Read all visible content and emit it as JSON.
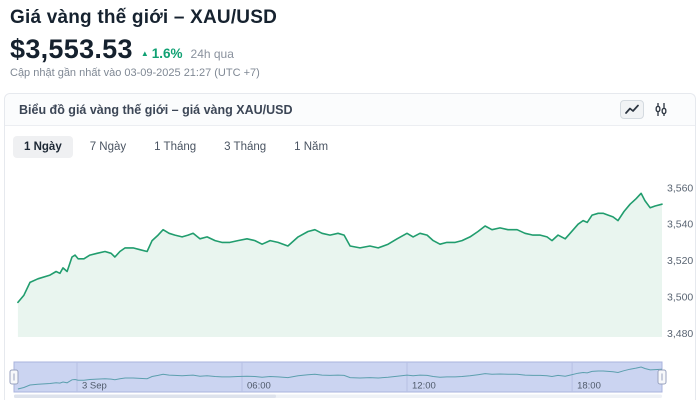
{
  "header": {
    "title": "Giá vàng thế giới – XAU/USD",
    "price": "$3,553.53",
    "change": {
      "arrow": "▲",
      "value": "1.6%",
      "color": "#10a173"
    },
    "change_period": "24h qua",
    "updated": "Cập nhật gần nhất vào 03-09-2025 21:27 (UTC +7)"
  },
  "chart_panel": {
    "title": "Biểu đồ giá vàng thế giới – giá vàng XAU/USD",
    "toolbar": [
      {
        "name": "line-chart-toggle",
        "icon": "line-chart-icon",
        "active": true
      },
      {
        "name": "candlestick-toggle",
        "icon": "candlestick-icon",
        "active": false
      }
    ],
    "range_tabs": [
      {
        "label": "1 Ngày",
        "active": true
      },
      {
        "label": "7 Ngày",
        "active": false
      },
      {
        "label": "1 Tháng",
        "active": false
      },
      {
        "label": "3 Tháng",
        "active": false
      },
      {
        "label": "1 Năm",
        "active": false
      }
    ]
  },
  "chart_data": {
    "type": "area",
    "title": "XAU/USD intraday price",
    "x_unit": "hours relative to 3 Sep 00:00 (UTC+7)",
    "x_range": [
      -2.29,
      21.27
    ],
    "x_ticks": [
      {
        "pos": 0,
        "label": "3 Sep"
      },
      {
        "pos": 6,
        "label": "06:00"
      },
      {
        "pos": 12,
        "label": "12:00"
      },
      {
        "pos": 18,
        "label": "18:00"
      }
    ],
    "y_ticks": [
      3480,
      3500,
      3520,
      3540,
      3560
    ],
    "y_tick_labels": [
      "3,480",
      "3,500",
      "3,520",
      "3,540",
      "3,560"
    ],
    "ylim": [
      3478,
      3572
    ],
    "grid": false,
    "colors": {
      "line": "#219d6e",
      "fill": "#e9f5ef",
      "axis_label": "#5a6573",
      "navigator_bg": "#cbd4f1",
      "navigator_border": "#a9b3dd",
      "navigator_grid": "#b7c0e4",
      "navigator_line": "#5c9fae",
      "navigator_label": "#4f5a6a",
      "handle_fill": "#f7f8fa",
      "handle_stroke": "#98a2bf",
      "scrollbar_track": "#eef1f6",
      "scrollbar_thumb": "#dde2ec"
    },
    "series": [
      {
        "name": "XAU/USD",
        "points": [
          [
            -2.15,
            3497
          ],
          [
            -1.93,
            3501
          ],
          [
            -1.71,
            3508
          ],
          [
            -1.42,
            3510
          ],
          [
            -0.98,
            3512
          ],
          [
            -0.76,
            3514
          ],
          [
            -0.62,
            3513
          ],
          [
            -0.51,
            3516
          ],
          [
            -0.36,
            3514
          ],
          [
            -0.18,
            3522
          ],
          [
            -0.07,
            3523
          ],
          [
            0.04,
            3521
          ],
          [
            0.25,
            3521
          ],
          [
            0.47,
            3523
          ],
          [
            0.73,
            3524
          ],
          [
            1.02,
            3525
          ],
          [
            1.24,
            3524
          ],
          [
            1.38,
            3522
          ],
          [
            1.56,
            3525
          ],
          [
            1.75,
            3527
          ],
          [
            2.04,
            3527
          ],
          [
            2.29,
            3526
          ],
          [
            2.55,
            3525
          ],
          [
            2.73,
            3531
          ],
          [
            2.95,
            3534
          ],
          [
            3.13,
            3537
          ],
          [
            3.35,
            3535
          ],
          [
            3.56,
            3534
          ],
          [
            3.82,
            3533
          ],
          [
            4.04,
            3534
          ],
          [
            4.22,
            3535
          ],
          [
            4.47,
            3532
          ],
          [
            4.73,
            3533
          ],
          [
            5.02,
            3531
          ],
          [
            5.27,
            3530
          ],
          [
            5.56,
            3530
          ],
          [
            5.85,
            3531
          ],
          [
            6.18,
            3532
          ],
          [
            6.47,
            3531
          ],
          [
            6.73,
            3529
          ],
          [
            7.02,
            3531
          ],
          [
            7.31,
            3530
          ],
          [
            7.67,
            3528
          ],
          [
            8.04,
            3533
          ],
          [
            8.4,
            3536
          ],
          [
            8.65,
            3537
          ],
          [
            8.91,
            3535
          ],
          [
            9.2,
            3534
          ],
          [
            9.49,
            3535
          ],
          [
            9.71,
            3534
          ],
          [
            9.93,
            3528
          ],
          [
            10.29,
            3527
          ],
          [
            10.65,
            3528
          ],
          [
            10.95,
            3527
          ],
          [
            11.31,
            3529
          ],
          [
            11.64,
            3532
          ],
          [
            12.0,
            3535
          ],
          [
            12.22,
            3533
          ],
          [
            12.47,
            3535
          ],
          [
            12.73,
            3534
          ],
          [
            12.95,
            3531
          ],
          [
            13.2,
            3529
          ],
          [
            13.45,
            3530
          ],
          [
            13.75,
            3530
          ],
          [
            14.0,
            3531
          ],
          [
            14.29,
            3533
          ],
          [
            14.58,
            3536
          ],
          [
            14.84,
            3539
          ],
          [
            15.09,
            3537
          ],
          [
            15.38,
            3538
          ],
          [
            15.67,
            3537
          ],
          [
            16.0,
            3537
          ],
          [
            16.29,
            3535
          ],
          [
            16.58,
            3534
          ],
          [
            16.84,
            3534
          ],
          [
            17.09,
            3533
          ],
          [
            17.27,
            3531
          ],
          [
            17.49,
            3534
          ],
          [
            17.75,
            3532
          ],
          [
            17.93,
            3535
          ],
          [
            18.22,
            3540
          ],
          [
            18.4,
            3542
          ],
          [
            18.55,
            3541
          ],
          [
            18.73,
            3545
          ],
          [
            18.95,
            3546
          ],
          [
            19.13,
            3546
          ],
          [
            19.31,
            3545
          ],
          [
            19.49,
            3544
          ],
          [
            19.67,
            3542
          ],
          [
            19.89,
            3547
          ],
          [
            20.11,
            3551
          ],
          [
            20.33,
            3554
          ],
          [
            20.51,
            3557
          ],
          [
            20.65,
            3553
          ],
          [
            20.84,
            3549
          ],
          [
            21.02,
            3550
          ],
          [
            21.27,
            3551
          ]
        ]
      }
    ],
    "navigator": {
      "shown": true,
      "selected_range": "full"
    }
  }
}
